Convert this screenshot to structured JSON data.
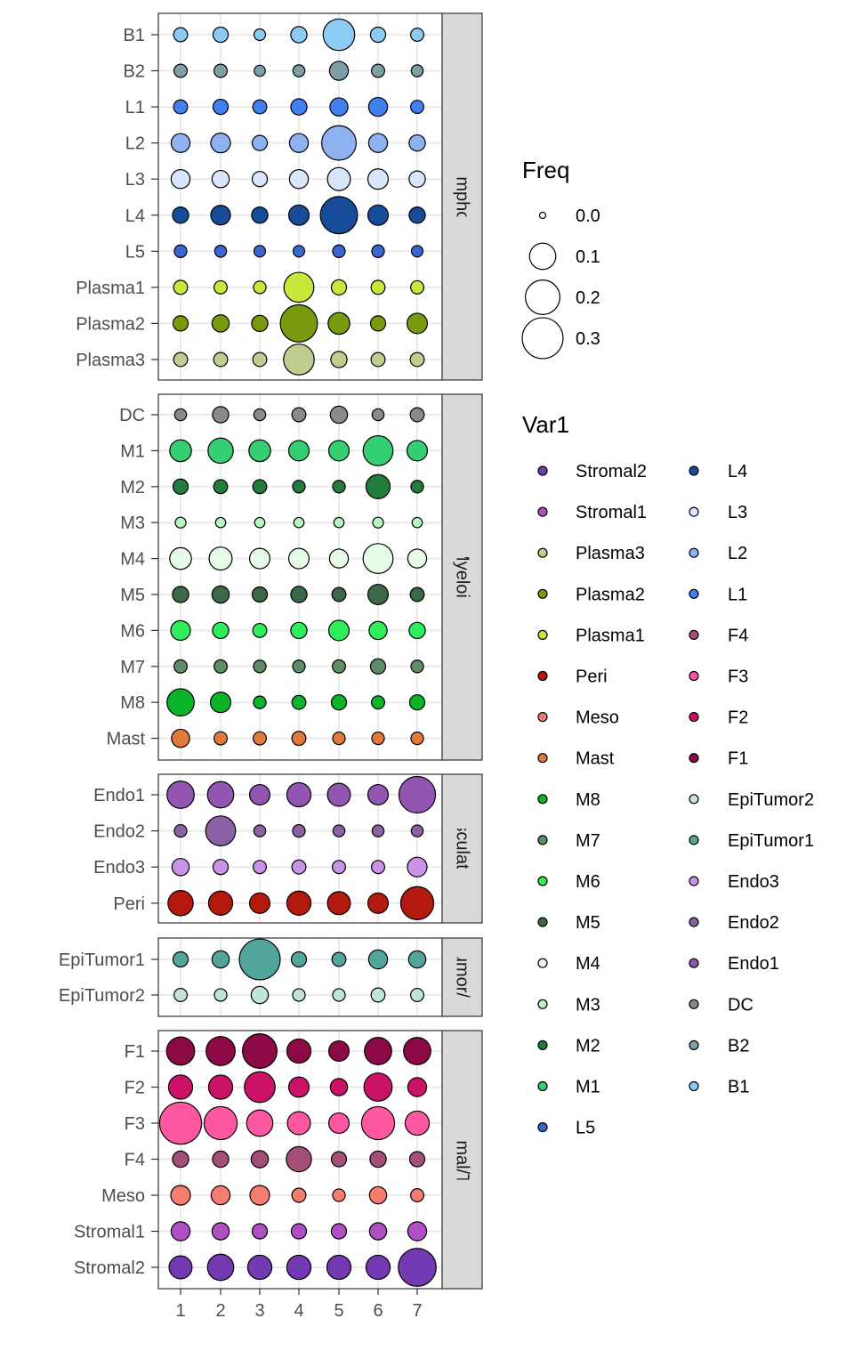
{
  "chart_data": {
    "type": "scatter",
    "subtype": "faceted dot plot",
    "x_categories": [
      "1",
      "2",
      "3",
      "4",
      "5",
      "6",
      "7"
    ],
    "size_legend": {
      "title": "Freq",
      "breaks": [
        0.0,
        0.1,
        0.2,
        0.3
      ],
      "labels": [
        "0.0",
        "0.1",
        "0.2",
        "0.3"
      ]
    },
    "color_legend": {
      "title": "Var1",
      "entries": [
        {
          "label": "Stromal2",
          "color": "#7239b3"
        },
        {
          "label": "Stromal1",
          "color": "#b04fc4"
        },
        {
          "label": "Plasma3",
          "color": "#bfcd8f"
        },
        {
          "label": "Plasma2",
          "color": "#7a9a0d"
        },
        {
          "label": "Plasma1",
          "color": "#c6e83a"
        },
        {
          "label": "Peri",
          "color": "#b3190d"
        },
        {
          "label": "Meso",
          "color": "#f77c70"
        },
        {
          "label": "Mast",
          "color": "#e07a3a"
        },
        {
          "label": "M8",
          "color": "#0cb42a"
        },
        {
          "label": "M7",
          "color": "#5e8c66"
        },
        {
          "label": "M6",
          "color": "#2fee5c"
        },
        {
          "label": "M5",
          "color": "#3b6847"
        },
        {
          "label": "M4",
          "color": "#e6fae8"
        },
        {
          "label": "M3",
          "color": "#b9f5c0"
        },
        {
          "label": "M2",
          "color": "#237c3d"
        },
        {
          "label": "M1",
          "color": "#36ce72"
        },
        {
          "label": "L5",
          "color": "#3966cf"
        },
        {
          "label": "L4",
          "color": "#154b99"
        },
        {
          "label": "L3",
          "color": "#d8e6fb"
        },
        {
          "label": "L2",
          "color": "#8eb2ef"
        },
        {
          "label": "L1",
          "color": "#3f7ff0"
        },
        {
          "label": "F4",
          "color": "#a34f78"
        },
        {
          "label": "F3",
          "color": "#ff58a2"
        },
        {
          "label": "F2",
          "color": "#cc1266"
        },
        {
          "label": "F1",
          "color": "#8b0a45"
        },
        {
          "label": "EpiTumor2",
          "color": "#c0e5d8"
        },
        {
          "label": "EpiTumor1",
          "color": "#52a59b"
        },
        {
          "label": "Endo3",
          "color": "#c994e7"
        },
        {
          "label": "Endo2",
          "color": "#8a62a4"
        },
        {
          "label": "Endo1",
          "color": "#9255b1"
        },
        {
          "label": "DC",
          "color": "#8a8a8a"
        },
        {
          "label": "B2",
          "color": "#7f9ea6"
        },
        {
          "label": "B1",
          "color": "#8bcbf4"
        }
      ]
    },
    "facets": [
      {
        "label": "Lymphoid",
        "rows": [
          {
            "name": "B1",
            "color": "#8bcbf4",
            "freq": [
              0.015,
              0.02,
              0.007,
              0.025,
              0.16,
              0.02,
              0.012
            ]
          },
          {
            "name": "B2",
            "color": "#7f9ea6",
            "freq": [
              0.012,
              0.012,
              0.006,
              0.008,
              0.04,
              0.012,
              0.008
            ]
          },
          {
            "name": "L1",
            "color": "#3f7ff0",
            "freq": [
              0.015,
              0.02,
              0.015,
              0.025,
              0.035,
              0.04,
              0.012
            ]
          },
          {
            "name": "L2",
            "color": "#8eb2ef",
            "freq": [
              0.04,
              0.045,
              0.02,
              0.04,
              0.2,
              0.04,
              0.025
            ]
          },
          {
            "name": "L3",
            "color": "#d8e6fb",
            "freq": [
              0.04,
              0.03,
              0.02,
              0.04,
              0.07,
              0.05,
              0.025
            ]
          },
          {
            "name": "L4",
            "color": "#154b99",
            "freq": [
              0.025,
              0.045,
              0.025,
              0.05,
              0.24,
              0.05,
              0.025
            ]
          },
          {
            "name": "L5",
            "color": "#3966cf",
            "freq": [
              0.01,
              0.008,
              0.007,
              0.007,
              0.01,
              0.01,
              0.007
            ]
          },
          {
            "name": "Plasma1",
            "color": "#c6e83a",
            "freq": [
              0.015,
              0.012,
              0.01,
              0.14,
              0.02,
              0.015,
              0.012
            ]
          },
          {
            "name": "Plasma2",
            "color": "#7a9a0d",
            "freq": [
              0.02,
              0.03,
              0.025,
              0.24,
              0.06,
              0.02,
              0.05
            ]
          },
          {
            "name": "Plasma3",
            "color": "#bfcd8f",
            "freq": [
              0.015,
              0.015,
              0.015,
              0.15,
              0.025,
              0.015,
              0.015
            ]
          }
        ]
      },
      {
        "label": "Myeloid",
        "rows": [
          {
            "name": "DC",
            "color": "#8a8a8a",
            "freq": [
              0.008,
              0.025,
              0.008,
              0.015,
              0.03,
              0.008,
              0.015
            ]
          },
          {
            "name": "M1",
            "color": "#36ce72",
            "freq": [
              0.06,
              0.09,
              0.06,
              0.05,
              0.05,
              0.14,
              0.05
            ]
          },
          {
            "name": "M2",
            "color": "#237c3d",
            "freq": [
              0.02,
              0.015,
              0.015,
              0.01,
              0.01,
              0.08,
              0.01
            ]
          },
          {
            "name": "M3",
            "color": "#b9f5c0",
            "freq": [
              0.005,
              0.004,
              0.004,
              0.004,
              0.004,
              0.005,
              0.004
            ]
          },
          {
            "name": "M4",
            "color": "#e6fae8",
            "freq": [
              0.06,
              0.07,
              0.05,
              0.05,
              0.04,
              0.14,
              0.04
            ]
          },
          {
            "name": "M5",
            "color": "#3b6847",
            "freq": [
              0.025,
              0.03,
              0.02,
              0.025,
              0.015,
              0.05,
              0.015
            ]
          },
          {
            "name": "M6",
            "color": "#2fee5c",
            "freq": [
              0.045,
              0.025,
              0.015,
              0.025,
              0.05,
              0.035,
              0.025
            ]
          },
          {
            "name": "M7",
            "color": "#5e8c66",
            "freq": [
              0.012,
              0.012,
              0.01,
              0.01,
              0.012,
              0.02,
              0.01
            ]
          },
          {
            "name": "M8",
            "color": "#0cb42a",
            "freq": [
              0.11,
              0.05,
              0.01,
              0.015,
              0.02,
              0.012,
              0.02
            ]
          },
          {
            "name": "Mast",
            "color": "#e07a3a",
            "freq": [
              0.035,
              0.012,
              0.012,
              0.015,
              0.01,
              0.01,
              0.01
            ]
          }
        ]
      },
      {
        "label": "Vasculature",
        "rows": [
          {
            "name": "Endo1",
            "color": "#9255b1",
            "freq": [
              0.11,
              0.1,
              0.05,
              0.08,
              0.07,
              0.05,
              0.23
            ]
          },
          {
            "name": "Endo2",
            "color": "#8a62a4",
            "freq": [
              0.01,
              0.14,
              0.008,
              0.01,
              0.008,
              0.008,
              0.008
            ]
          },
          {
            "name": "Endo3",
            "color": "#c994e7",
            "freq": [
              0.03,
              0.02,
              0.012,
              0.015,
              0.012,
              0.012,
              0.045
            ]
          },
          {
            "name": "Peri",
            "color": "#b3190d",
            "freq": [
              0.09,
              0.08,
              0.05,
              0.08,
              0.07,
              0.05,
              0.18
            ]
          }
        ]
      },
      {
        "label": "EpiTumor/Epith",
        "rows": [
          {
            "name": "EpiTumor1",
            "color": "#52a59b",
            "freq": [
              0.02,
              0.03,
              0.3,
              0.02,
              0.015,
              0.04,
              0.03
            ]
          },
          {
            "name": "EpiTumor2",
            "color": "#c0e5d8",
            "freq": [
              0.012,
              0.01,
              0.03,
              0.01,
              0.01,
              0.015,
              0.012
            ]
          }
        ]
      },
      {
        "label": "Stromal/TME",
        "rows": [
          {
            "name": "F1",
            "color": "#8b0a45",
            "freq": [
              0.12,
              0.13,
              0.2,
              0.08,
              0.05,
              0.11,
              0.11
            ]
          },
          {
            "name": "F2",
            "color": "#cc1266",
            "freq": [
              0.08,
              0.08,
              0.15,
              0.05,
              0.03,
              0.12,
              0.04
            ]
          },
          {
            "name": "F3",
            "color": "#ff58a2",
            "freq": [
              0.32,
              0.18,
              0.1,
              0.07,
              0.05,
              0.18,
              0.08
            ]
          },
          {
            "name": "F4",
            "color": "#a34f78",
            "freq": [
              0.025,
              0.025,
              0.03,
              0.09,
              0.02,
              0.025,
              0.02
            ]
          },
          {
            "name": "Meso",
            "color": "#f77c70",
            "freq": [
              0.045,
              0.04,
              0.045,
              0.015,
              0.01,
              0.03,
              0.012
            ]
          },
          {
            "name": "Stromal1",
            "color": "#b04fc4",
            "freq": [
              0.04,
              0.03,
              0.02,
              0.02,
              0.02,
              0.03,
              0.04
            ]
          },
          {
            "name": "Stromal2",
            "color": "#7239b3",
            "freq": [
              0.07,
              0.1,
              0.08,
              0.08,
              0.08,
              0.08,
              0.25
            ]
          }
        ]
      }
    ]
  }
}
